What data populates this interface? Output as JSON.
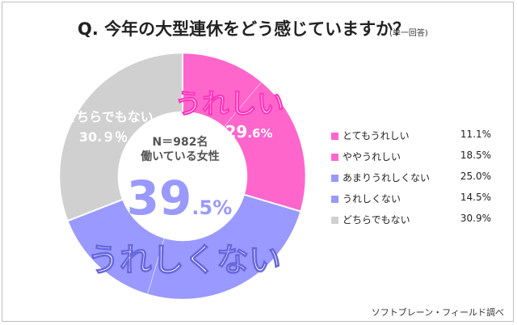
{
  "title": "Q.  今年の大型連休をどう感じていますか？",
  "title_note": "(単一回答)",
  "source": "ソフトブレーン・フィールド調べ",
  "center": {
    "sample": "N＝982名",
    "subject": "働いている女性",
    "big_int": "39",
    "big_dec": ".5%"
  },
  "colors": {
    "pink_dark": "#ff66cc",
    "pink": "#ff66cc",
    "purple_dark": "#9999ff",
    "purple": "#9999ff",
    "gray": "#d0d0d0",
    "big_text": "#9999ff"
  },
  "callouts": {
    "ureshii": {
      "label": "うれしい",
      "value_int": "29",
      "value_dec": ".6%"
    },
    "ureshikunai": {
      "label": "うれしくない"
    },
    "dochira": {
      "label": "どちらでもない",
      "value": "30.９％"
    }
  },
  "chart_data": {
    "type": "pie",
    "donut": true,
    "categories": [
      "とてもうれしい",
      "ややうれしい",
      "あまりうれしくない",
      "うれしくない",
      "どちらでもない"
    ],
    "values": [
      11.1,
      18.5,
      25.0,
      14.5,
      30.9
    ],
    "value_labels": [
      "11.1%",
      "18.5%",
      "25.0%",
      "14.5%",
      "30.9%"
    ],
    "colors": [
      "#ff66cc",
      "#ff66cc",
      "#9999ff",
      "#9999ff",
      "#d0d0d0"
    ],
    "groups": [
      {
        "name": "うれしい",
        "value": 29.6
      },
      {
        "name": "うれしくない",
        "value": 39.5
      },
      {
        "name": "どちらでもない",
        "value": 30.9
      }
    ],
    "legend_position": "right"
  }
}
